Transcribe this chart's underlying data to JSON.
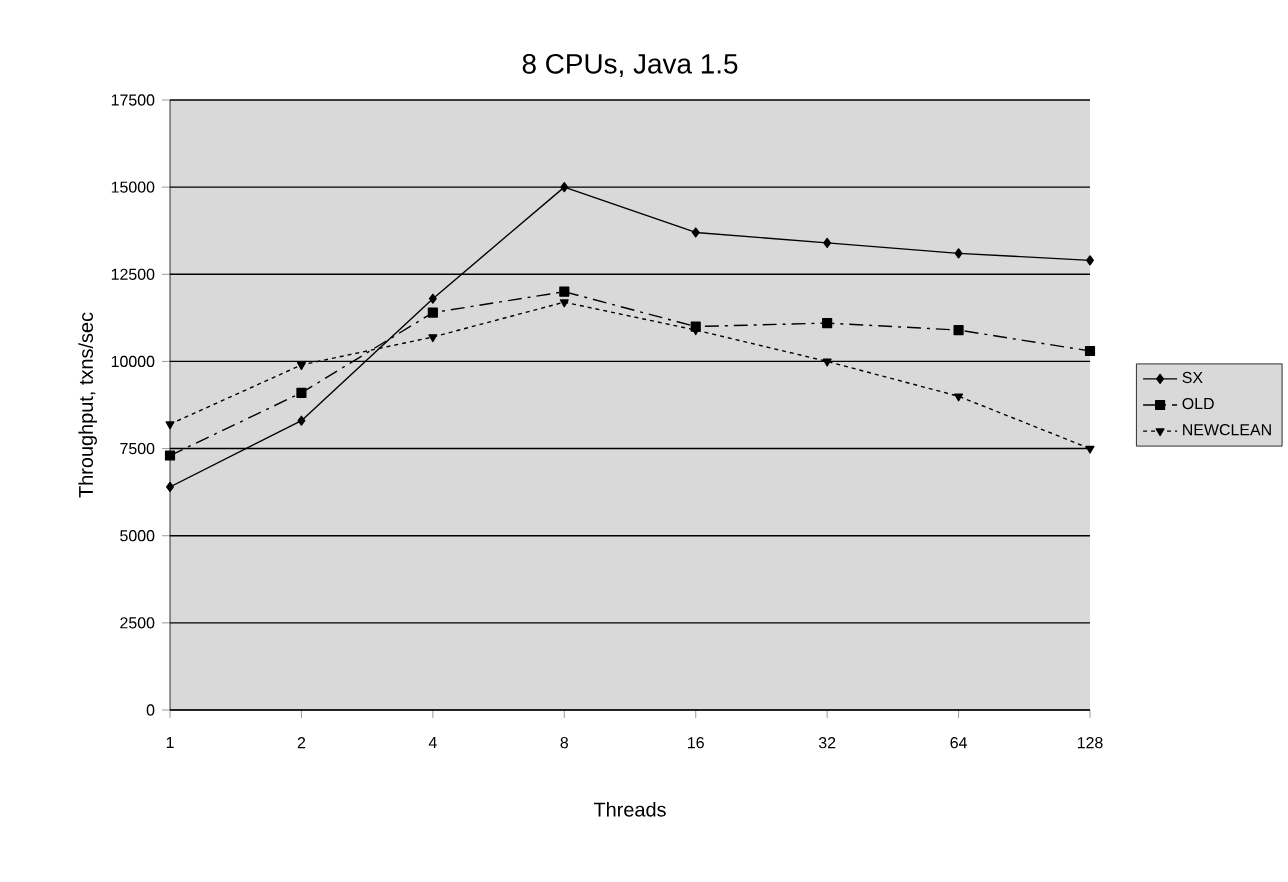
{
  "chart_data": {
    "type": "line",
    "title": "8 CPUs, Java 1.5",
    "xlabel": "Threads",
    "ylabel": "Throughput, txns/sec",
    "categories": [
      "1",
      "2",
      "4",
      "8",
      "16",
      "32",
      "64",
      "128"
    ],
    "series": [
      {
        "name": "SX",
        "color": "#000000",
        "marker": "diamond",
        "line_style": "solid",
        "values": [
          6400,
          8300,
          11800,
          15000,
          13700,
          13400,
          13100,
          12900
        ]
      },
      {
        "name": "OLD",
        "color": "#000000",
        "marker": "square",
        "line_style": "dashed",
        "values": [
          7300,
          9100,
          11400,
          12000,
          11000,
          11100,
          10900,
          10300
        ]
      },
      {
        "name": "NEWCLEAN",
        "color": "#000000",
        "marker": "triangle",
        "line_style": "dotted",
        "values": [
          8200,
          9900,
          10700,
          11700,
          10900,
          10000,
          9000,
          7500
        ]
      }
    ],
    "ylim": [
      0,
      17500
    ],
    "yticks": [
      0,
      2500,
      5000,
      7500,
      10000,
      12500,
      15000,
      17500
    ],
    "grid": "y",
    "legend": "right"
  }
}
